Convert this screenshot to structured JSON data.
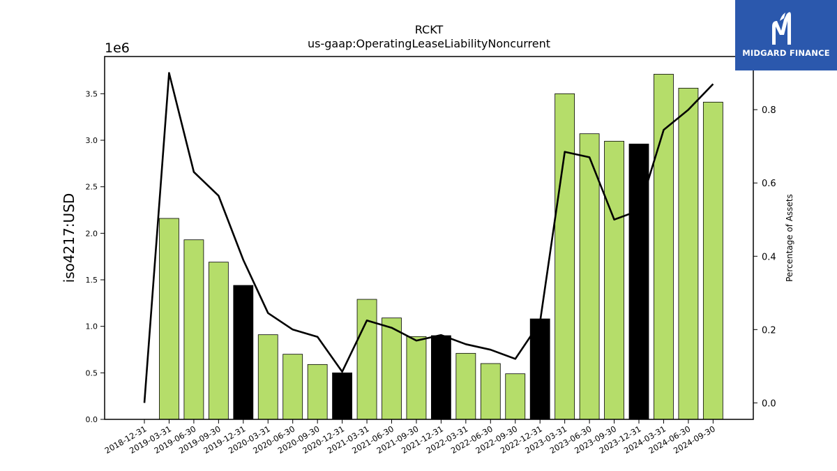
{
  "chart_data": {
    "type": "bar",
    "title": "RCKT",
    "subtitle": "us-gaap:OperatingLeaseLiabilityNoncurrent",
    "ylabel": "iso4217:USD",
    "y2label": "Percentage of Assets",
    "y_multiplier_label": "1e6",
    "categories": [
      "2018-12-31",
      "2019-03-31",
      "2019-06-30",
      "2019-09-30",
      "2019-12-31",
      "2020-03-31",
      "2020-06-30",
      "2020-09-30",
      "2020-12-31",
      "2021-03-31",
      "2021-06-30",
      "2021-09-30",
      "2021-12-31",
      "2022-03-31",
      "2022-06-30",
      "2022-09-30",
      "2022-12-31",
      "2023-03-31",
      "2023-06-30",
      "2023-09-30",
      "2023-12-31",
      "2024-03-31",
      "2024-06-30",
      "2024-09-30"
    ],
    "values": [
      0,
      2160000,
      1930000,
      1690000,
      1440000,
      910000,
      700000,
      590000,
      500000,
      1290000,
      1090000,
      890000,
      900000,
      710000,
      600000,
      490000,
      1080000,
      3500000,
      3070000,
      2990000,
      2960000,
      3710000,
      3560000,
      3410000
    ],
    "bar_highlight": [
      false,
      false,
      false,
      false,
      true,
      false,
      false,
      false,
      true,
      false,
      false,
      false,
      true,
      false,
      false,
      false,
      true,
      false,
      false,
      false,
      true,
      false,
      false,
      false
    ],
    "line_values": [
      0.0,
      0.9,
      0.63,
      0.565,
      0.39,
      0.245,
      0.2,
      0.18,
      0.085,
      0.225,
      0.205,
      0.17,
      0.185,
      0.16,
      0.145,
      0.12,
      0.22,
      0.685,
      0.67,
      0.5,
      0.525,
      0.745,
      0.8,
      0.87
    ],
    "ylim": [
      0,
      3900000
    ],
    "y2lim": [
      -0.045,
      0.945
    ],
    "yticks": [
      0,
      500000,
      1000000,
      1500000,
      2000000,
      2500000,
      3000000,
      3500000
    ],
    "ytick_labels": [
      "0.0",
      "0.5",
      "1.0",
      "1.5",
      "2.0",
      "2.5",
      "3.0",
      "3.5"
    ],
    "y2ticks": [
      0.0,
      0.2,
      0.4,
      0.6,
      0.8
    ],
    "y2tick_labels": [
      "0.0",
      "0.2",
      "0.4",
      "0.6",
      "0.8"
    ],
    "colors": {
      "bar": "#b5dd6a",
      "bar_highlight": "#000000",
      "line": "#000000",
      "logo_bg": "#2b58ad"
    },
    "grid": false
  },
  "logo": {
    "text": "MIDGARD FINANCE",
    "icon": "midgard-m-icon"
  }
}
